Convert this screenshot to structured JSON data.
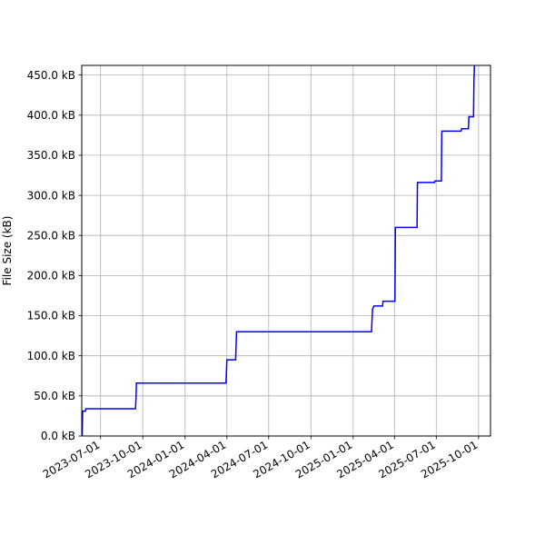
{
  "chart_data": {
    "type": "line",
    "title": "",
    "xlabel": "",
    "ylabel": "File Size (kB)",
    "grid": true,
    "line_color": "#0000ff",
    "xlim": [
      "2023-05-21",
      "2025-10-27"
    ],
    "ylim": [
      0,
      462
    ],
    "x_ticks": [
      "2023-07-01",
      "2023-10-01",
      "2024-01-01",
      "2024-04-01",
      "2024-07-01",
      "2024-10-01",
      "2025-01-01",
      "2025-04-01",
      "2025-07-01",
      "2025-10-01"
    ],
    "y_ticks": [
      {
        "value": 0,
        "label": "0.0 kB"
      },
      {
        "value": 50,
        "label": "50.0 kB"
      },
      {
        "value": 100,
        "label": "100.0 kB"
      },
      {
        "value": 150,
        "label": "150.0 kB"
      },
      {
        "value": 200,
        "label": "200.0 kB"
      },
      {
        "value": 250,
        "label": "250.0 kB"
      },
      {
        "value": 300,
        "label": "300.0 kB"
      },
      {
        "value": 350,
        "label": "350.0 kB"
      },
      {
        "value": 400,
        "label": "400.0 kB"
      },
      {
        "value": 450,
        "label": "450.0 kB"
      }
    ],
    "series": [
      {
        "points": [
          {
            "x": "2023-05-22",
            "y": 0
          },
          {
            "x": "2023-05-23",
            "y": 31
          },
          {
            "x": "2023-05-29",
            "y": 31
          },
          {
            "x": "2023-05-30",
            "y": 34
          },
          {
            "x": "2023-09-15",
            "y": 34
          },
          {
            "x": "2023-09-16",
            "y": 47
          },
          {
            "x": "2023-09-17",
            "y": 66
          },
          {
            "x": "2024-03-30",
            "y": 66
          },
          {
            "x": "2024-04-01",
            "y": 95
          },
          {
            "x": "2024-04-20",
            "y": 95
          },
          {
            "x": "2024-04-22",
            "y": 130
          },
          {
            "x": "2025-02-10",
            "y": 130
          },
          {
            "x": "2025-02-12",
            "y": 158
          },
          {
            "x": "2025-02-15",
            "y": 162
          },
          {
            "x": "2025-03-06",
            "y": 162
          },
          {
            "x": "2025-03-07",
            "y": 168
          },
          {
            "x": "2025-04-02",
            "y": 168
          },
          {
            "x": "2025-04-03",
            "y": 260
          },
          {
            "x": "2025-05-20",
            "y": 260
          },
          {
            "x": "2025-05-21",
            "y": 316
          },
          {
            "x": "2025-06-27",
            "y": 316
          },
          {
            "x": "2025-06-28",
            "y": 318
          },
          {
            "x": "2025-07-12",
            "y": 318
          },
          {
            "x": "2025-07-13",
            "y": 380
          },
          {
            "x": "2025-08-24",
            "y": 380
          },
          {
            "x": "2025-08-25",
            "y": 383
          },
          {
            "x": "2025-09-09",
            "y": 383
          },
          {
            "x": "2025-09-10",
            "y": 398
          },
          {
            "x": "2025-09-20",
            "y": 398
          },
          {
            "x": "2025-09-21",
            "y": 445
          },
          {
            "x": "2025-09-22",
            "y": 462
          }
        ]
      }
    ]
  }
}
